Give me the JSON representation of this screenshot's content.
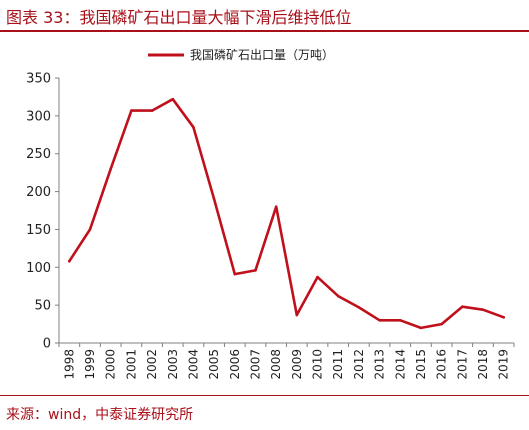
{
  "header": {
    "title": "图表 33：我国磷矿石出口量大幅下滑后维持低位"
  },
  "footer": {
    "source": "来源：wind，中泰证券研究所"
  },
  "colors": {
    "accent": "#a8101a",
    "series": "#c0101c",
    "axis": "#808080"
  },
  "chart_data": {
    "type": "line",
    "title": "",
    "xlabel": "",
    "ylabel": "",
    "ylim": [
      0,
      350
    ],
    "yticks": [
      0,
      50,
      100,
      150,
      200,
      250,
      300,
      350
    ],
    "grid": false,
    "legend_position": "top-center",
    "x": [
      "1998",
      "1999",
      "2000",
      "2001",
      "2002",
      "2003",
      "2004",
      "2005",
      "2006",
      "2007",
      "2008",
      "2009",
      "2010",
      "2011",
      "2012",
      "2013",
      "2014",
      "2015",
      "2016",
      "2017",
      "2018",
      "2019"
    ],
    "series": [
      {
        "name": "我国磷矿石出口量（万吨）",
        "values": [
          108,
          150,
          230,
          307,
          307,
          322,
          285,
          190,
          91,
          96,
          180,
          37,
          87,
          62,
          47,
          30,
          30,
          20,
          25,
          48,
          44,
          34
        ]
      }
    ]
  }
}
